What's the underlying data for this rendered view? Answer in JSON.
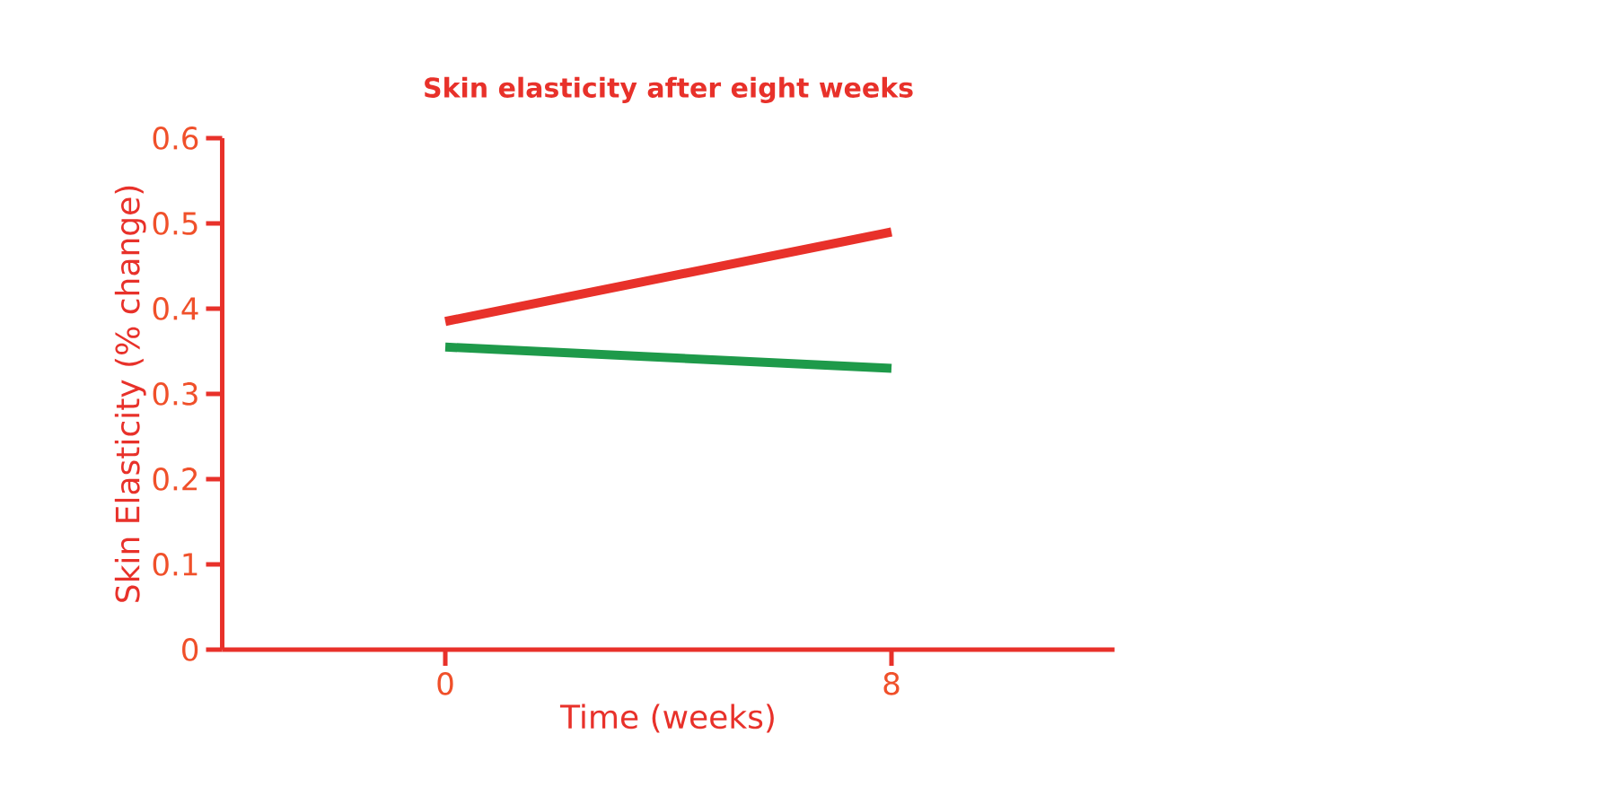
{
  "chart_data": {
    "type": "line",
    "title": "Skin elasticity after eight weeks",
    "xlabel": "Time (weeks)",
    "ylabel": "Skin Elasticity (% change)",
    "x": [
      0,
      8
    ],
    "series": [
      {
        "color": "#e8312a",
        "values": [
          0.385,
          0.49
        ]
      },
      {
        "color": "#1e9a4a",
        "values": [
          0.355,
          0.33
        ]
      }
    ],
    "xlim": [
      -4,
      12
    ],
    "xticks": [
      0,
      8
    ],
    "ylim": [
      0,
      0.6
    ],
    "yticks": [
      0,
      0.1,
      0.2,
      0.3,
      0.4,
      0.5,
      0.6
    ],
    "grid": false,
    "marker": "none",
    "line_style": "solid"
  }
}
